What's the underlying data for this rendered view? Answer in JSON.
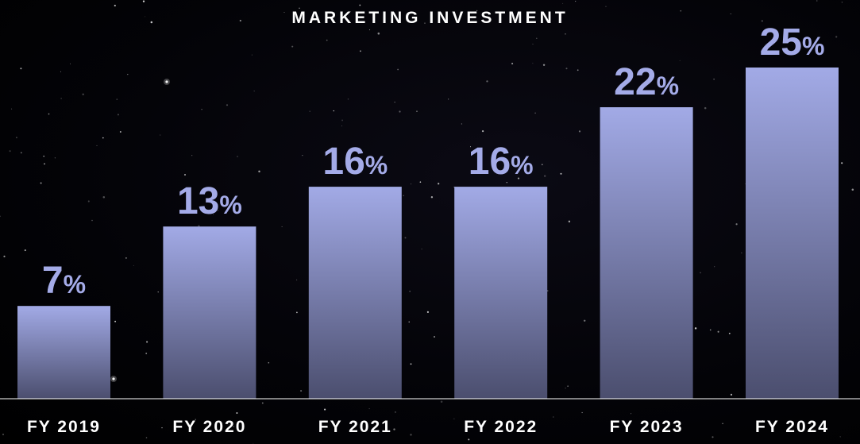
{
  "colors": {
    "background": "#000000",
    "bar_top": "#a2aae6",
    "bar_bottom": "#4b4e6e",
    "label": "#a4abe8",
    "text": "#ffffff",
    "baseline": "#ffffff"
  },
  "chart_data": {
    "type": "bar",
    "title": "MARKETING INVESTMENT",
    "categories": [
      "FY 2019",
      "FY 2020",
      "FY 2021",
      "FY 2022",
      "FY 2023",
      "FY 2024"
    ],
    "values": [
      7,
      13,
      16,
      16,
      22,
      25
    ],
    "data_labels": [
      "7",
      "13",
      "16",
      "16",
      "22",
      "25"
    ],
    "unit": "%",
    "ylim": [
      0,
      25
    ],
    "grid": false,
    "legend": "none",
    "xlabel": "",
    "ylabel": ""
  }
}
